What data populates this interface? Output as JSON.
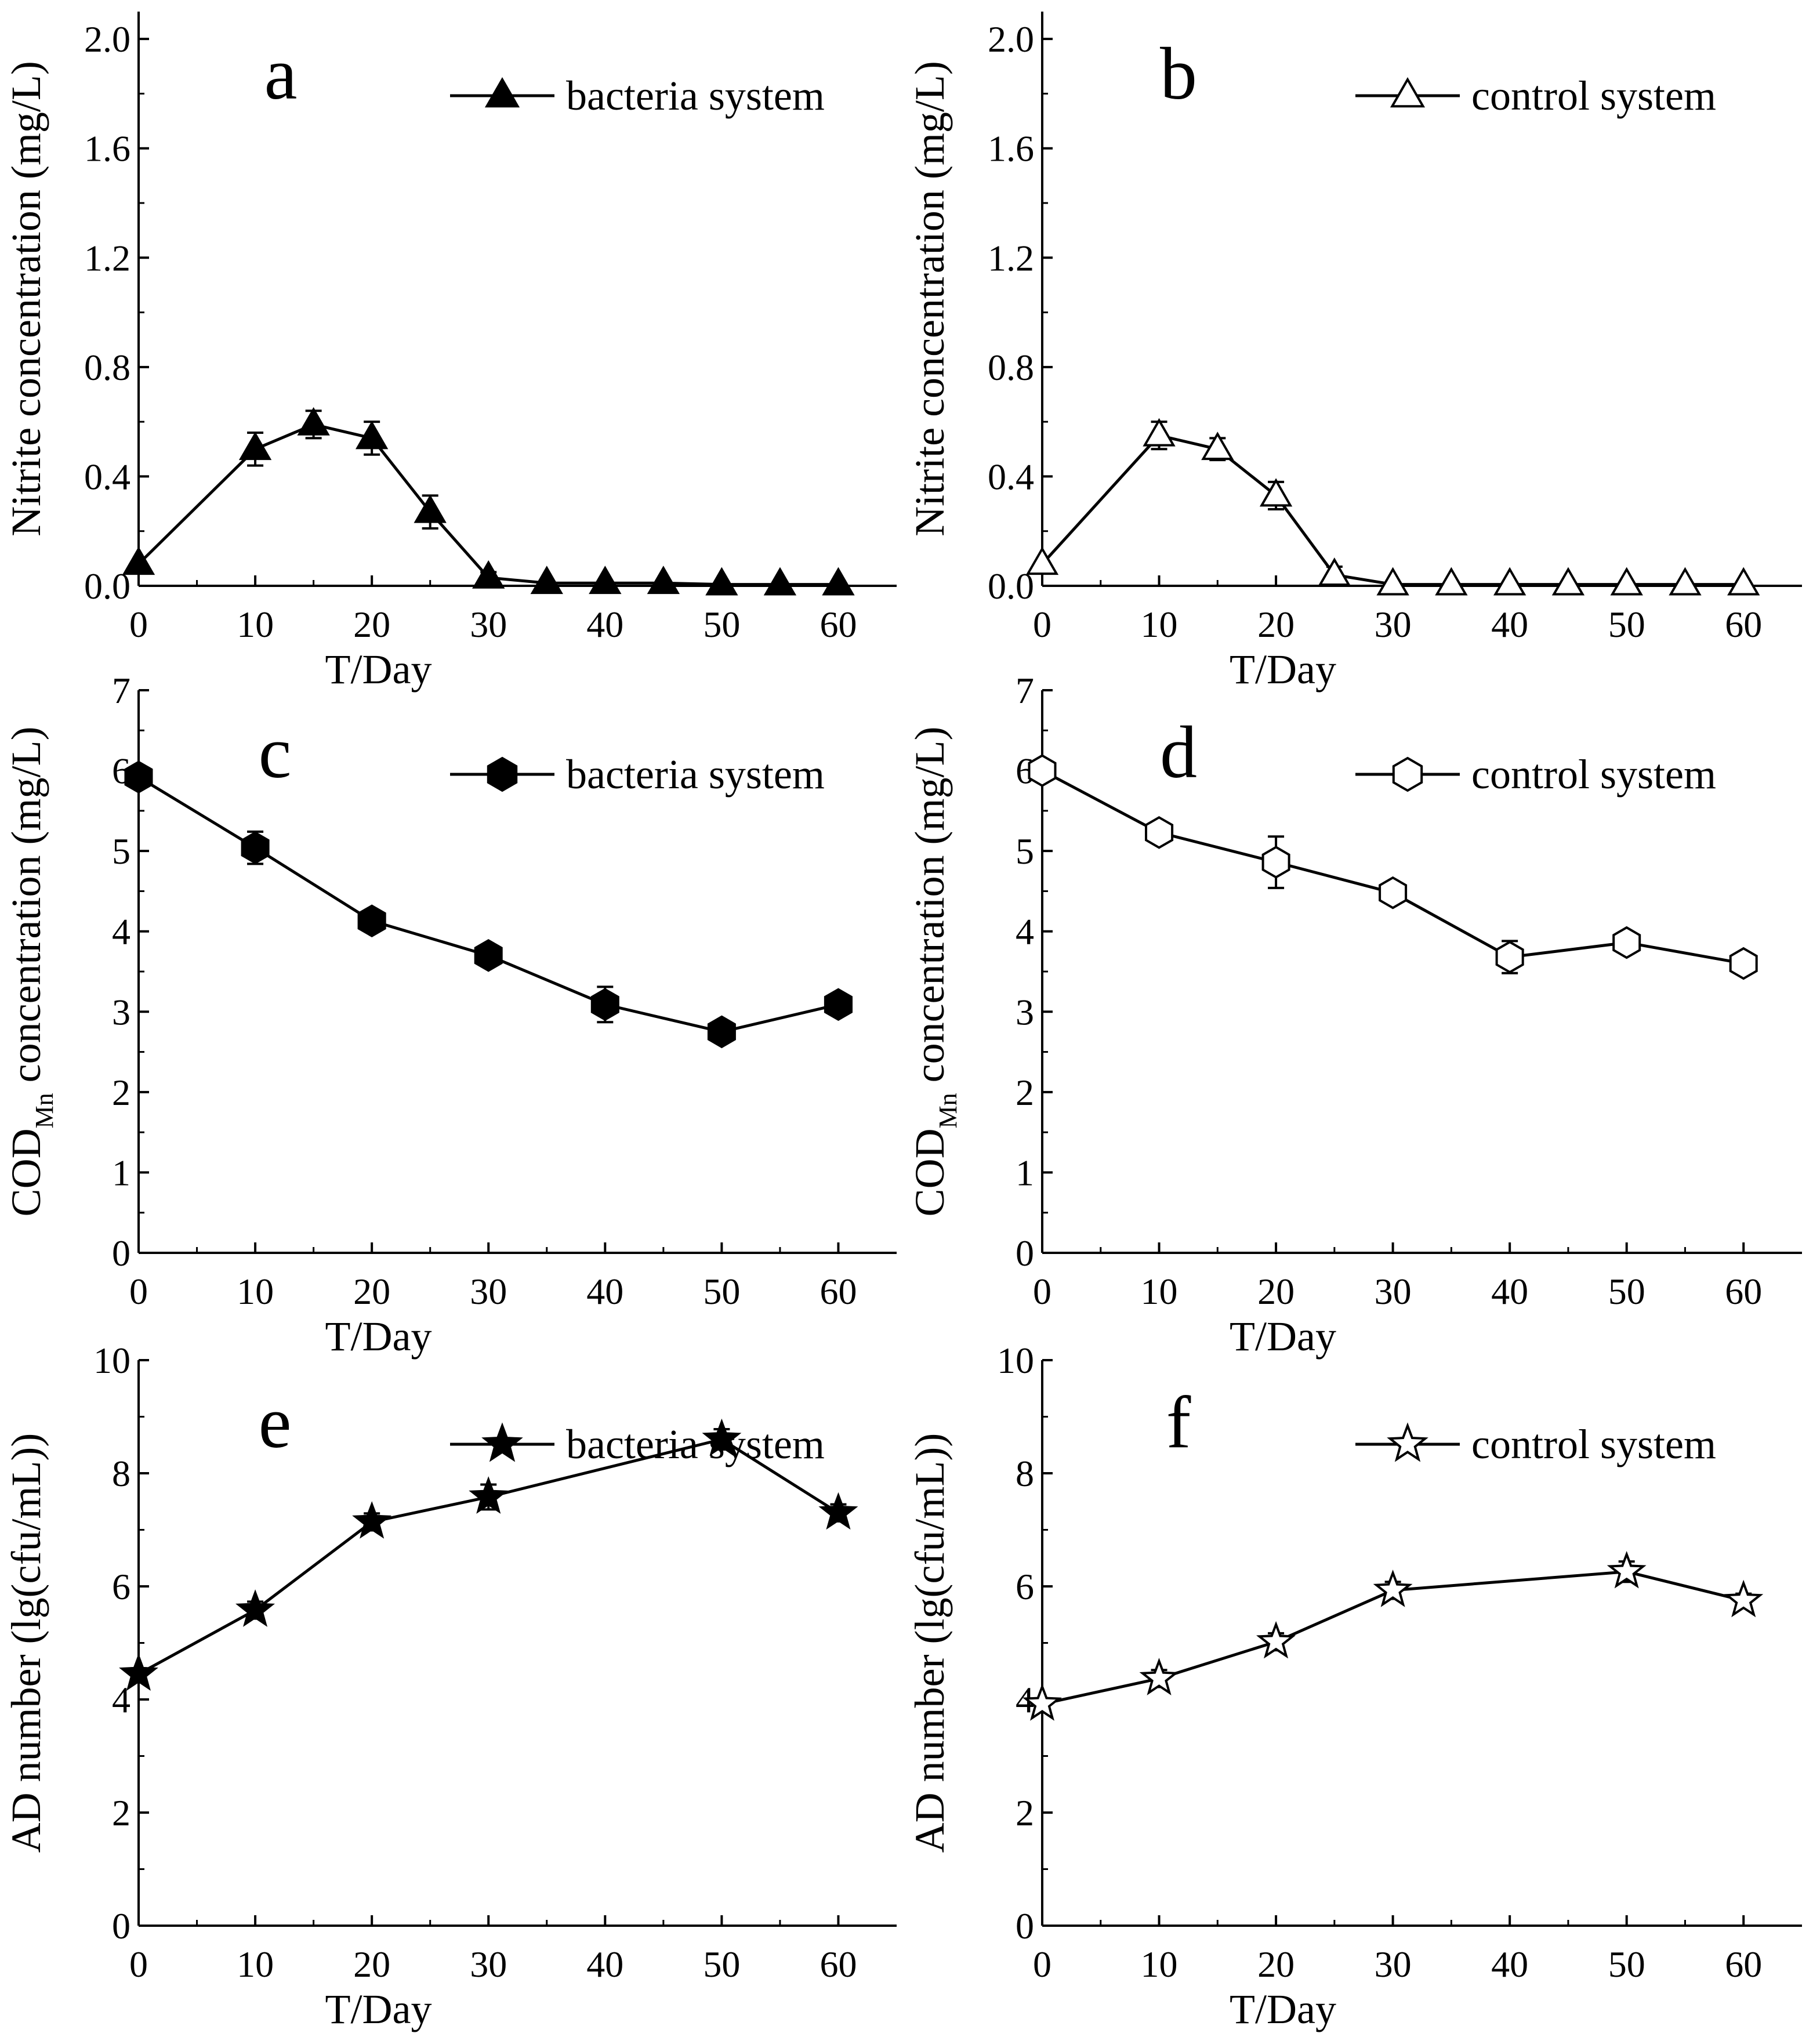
{
  "colors": {
    "ink": "#000000",
    "background": "#ffffff",
    "open_fill": "#ffffff"
  },
  "chart_data": [
    {
      "panel": "a",
      "type": "line",
      "marker": "filled-triangle",
      "xlabel": "T/Day",
      "ylabel": "Nitrite concentration (mg/L)",
      "xlim": [
        0,
        65
      ],
      "ylim": [
        0,
        2.1
      ],
      "xticks": [
        0,
        10,
        20,
        30,
        40,
        50,
        60
      ],
      "yticks": [
        0.0,
        0.4,
        0.8,
        1.2,
        1.6,
        2.0
      ],
      "ytick_labels": [
        "0.0",
        "0.4",
        "0.8",
        "1.2",
        "1.6",
        "2.0"
      ],
      "grid": false,
      "legend_position": "top-right",
      "series": [
        {
          "name": "bacteria system",
          "x": [
            0,
            10,
            15,
            20,
            25,
            30,
            35,
            40,
            45,
            50,
            55,
            60
          ],
          "y": [
            0.08,
            0.5,
            0.59,
            0.54,
            0.27,
            0.03,
            0.01,
            0.01,
            0.01,
            0.005,
            0.005,
            0.005
          ],
          "error": [
            0,
            0.06,
            0.05,
            0.06,
            0.06,
            0.02,
            0,
            0,
            0,
            0,
            0,
            0
          ]
        }
      ]
    },
    {
      "panel": "b",
      "type": "line",
      "marker": "open-triangle",
      "xlabel": "T/Day",
      "ylabel": "Nitrite concentration (mg/L)",
      "xlim": [
        0,
        65
      ],
      "ylim": [
        0,
        2.1
      ],
      "xticks": [
        0,
        10,
        20,
        30,
        40,
        50,
        60
      ],
      "yticks": [
        0.0,
        0.4,
        0.8,
        1.2,
        1.6,
        2.0
      ],
      "ytick_labels": [
        "0.0",
        "0.4",
        "0.8",
        "1.2",
        "1.6",
        "2.0"
      ],
      "grid": false,
      "legend_position": "top-right",
      "series": [
        {
          "name": "control system",
          "x": [
            0,
            10,
            15,
            20,
            25,
            30,
            35,
            40,
            45,
            50,
            55,
            60
          ],
          "y": [
            0.08,
            0.55,
            0.5,
            0.33,
            0.04,
            0.005,
            0.005,
            0.005,
            0.005,
            0.005,
            0.005,
            0.005
          ],
          "error": [
            0,
            0.05,
            0.04,
            0.05,
            0.03,
            0,
            0,
            0,
            0,
            0,
            0,
            0
          ]
        }
      ]
    },
    {
      "panel": "c",
      "type": "line",
      "marker": "filled-hexagon",
      "xlabel": "T/Day",
      "ylabel_main": "COD",
      "ylabel_sub": "Mn",
      "ylabel_rest": " concentration (mg/L)",
      "xlim": [
        0,
        65
      ],
      "ylim": [
        0,
        7
      ],
      "xticks": [
        0,
        10,
        20,
        30,
        40,
        50,
        60
      ],
      "yticks": [
        0,
        1,
        2,
        3,
        4,
        5,
        6,
        7
      ],
      "ytick_labels": [
        "0",
        "1",
        "2",
        "3",
        "4",
        "5",
        "6",
        "7"
      ],
      "grid": false,
      "legend_position": "top-right",
      "series": [
        {
          "name": "bacteria system",
          "x": [
            0,
            10,
            20,
            30,
            40,
            50,
            60
          ],
          "y": [
            5.92,
            5.04,
            4.13,
            3.7,
            3.09,
            2.75,
            3.09
          ],
          "error": [
            0.08,
            0.2,
            0.12,
            0.12,
            0.22,
            0.1,
            0.1
          ]
        }
      ]
    },
    {
      "panel": "d",
      "type": "line",
      "marker": "open-hexagon",
      "xlabel": "T/Day",
      "ylabel_main": "COD",
      "ylabel_sub": "Mn",
      "ylabel_rest": " concentration (mg/L)",
      "xlim": [
        0,
        65
      ],
      "ylim": [
        0,
        7
      ],
      "xticks": [
        0,
        10,
        20,
        30,
        40,
        50,
        60
      ],
      "yticks": [
        0,
        1,
        2,
        3,
        4,
        5,
        6,
        7
      ],
      "ytick_labels": [
        "0",
        "1",
        "2",
        "3",
        "4",
        "5",
        "6",
        "7"
      ],
      "grid": false,
      "legend_position": "top-right",
      "series": [
        {
          "name": "control system",
          "x": [
            0,
            10,
            20,
            30,
            40,
            50,
            60
          ],
          "y": [
            6.0,
            5.23,
            4.86,
            4.48,
            3.68,
            3.86,
            3.6
          ],
          "error": [
            0.08,
            0.12,
            0.32,
            0.12,
            0.2,
            0.12,
            0.12
          ]
        }
      ]
    },
    {
      "panel": "e",
      "type": "line",
      "marker": "filled-star",
      "xlabel": "T/Day",
      "ylabel": "AD number (lg(cfu/mL))",
      "xlim": [
        0,
        65
      ],
      "ylim": [
        0,
        10
      ],
      "xticks": [
        0,
        10,
        20,
        30,
        40,
        50,
        60
      ],
      "yticks": [
        0,
        2,
        4,
        6,
        8,
        10
      ],
      "ytick_labels": [
        "0",
        "2",
        "4",
        "6",
        "8",
        "10"
      ],
      "grid": false,
      "legend_position": "top-right",
      "series": [
        {
          "name": "bacteria system",
          "x": [
            0,
            10,
            20,
            30,
            50,
            60
          ],
          "y": [
            4.45,
            5.58,
            7.14,
            7.58,
            8.6,
            7.3
          ],
          "error": [
            0.1,
            0.15,
            0.15,
            0.22,
            0.18,
            0.15
          ]
        }
      ]
    },
    {
      "panel": "f",
      "type": "line",
      "marker": "open-star",
      "xlabel": "T/Day",
      "ylabel": "AD number (lg(cfu/mL))",
      "xlim": [
        0,
        65
      ],
      "ylim": [
        0,
        10
      ],
      "xticks": [
        0,
        10,
        20,
        30,
        40,
        50,
        60
      ],
      "yticks": [
        0,
        2,
        4,
        6,
        8,
        10
      ],
      "ytick_labels": [
        "0",
        "2",
        "4",
        "6",
        "8",
        "10"
      ],
      "grid": false,
      "legend_position": "top-right",
      "series": [
        {
          "name": "control system",
          "x": [
            0,
            10,
            20,
            30,
            50,
            60
          ],
          "y": [
            3.92,
            4.37,
            5.02,
            5.93,
            6.26,
            5.75
          ],
          "error": [
            0.1,
            0.15,
            0.15,
            0.15,
            0.18,
            0.12
          ]
        }
      ]
    }
  ]
}
